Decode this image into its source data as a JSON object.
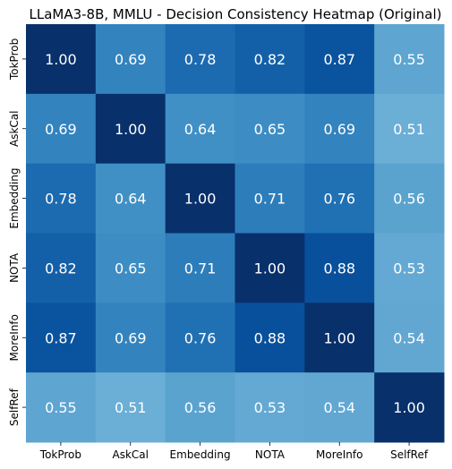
{
  "chart_data": {
    "type": "heatmap",
    "title": "LLaMA3-8B, MMLU - Decision Consistency Heatmap (Original)",
    "xlabel": "",
    "ylabel": "",
    "x_categories": [
      "TokProb",
      "AskCal",
      "Embedding",
      "NOTA",
      "MoreInfo",
      "SelfRef"
    ],
    "y_categories": [
      "TokProb",
      "AskCal",
      "Embedding",
      "NOTA",
      "MoreInfo",
      "SelfRef"
    ],
    "values": [
      [
        1.0,
        0.69,
        0.78,
        0.82,
        0.87,
        0.55
      ],
      [
        0.69,
        1.0,
        0.64,
        0.65,
        0.69,
        0.51
      ],
      [
        0.78,
        0.64,
        1.0,
        0.71,
        0.76,
        0.56
      ],
      [
        0.82,
        0.65,
        0.71,
        1.0,
        0.88,
        0.53
      ],
      [
        0.87,
        0.69,
        0.76,
        0.88,
        1.0,
        0.54
      ],
      [
        0.55,
        0.51,
        0.56,
        0.53,
        0.54,
        1.0
      ]
    ],
    "value_format": "2 decimals",
    "colormap": "Blues",
    "color_range": [
      0.51,
      1.0
    ],
    "cell_label_color": "#ffffff",
    "colorbar": false,
    "grid": false
  }
}
